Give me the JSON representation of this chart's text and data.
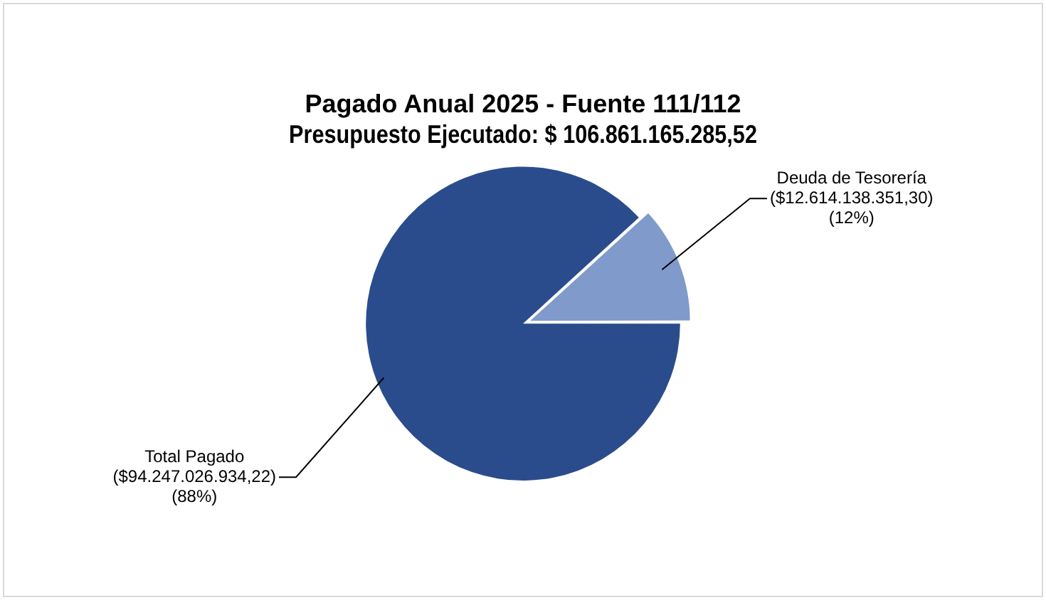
{
  "chart_data": {
    "type": "pie",
    "title": [
      "Pagado Anual 2025 - Fuente 111/112",
      "Presupuesto Ejecutado: $ 106.861.165.285,52"
    ],
    "categories": [
      "Total Pagado",
      "Deuda de Tesorería"
    ],
    "values": [
      94247026934.22,
      12614138351.3
    ],
    "colors": [
      "#2b4c8c",
      "#7f9acb"
    ],
    "value_labels": [
      "($94.247.026.934,22) (88%)",
      "($12.614.138.351,30) (12%)"
    ],
    "legend": false
  }
}
